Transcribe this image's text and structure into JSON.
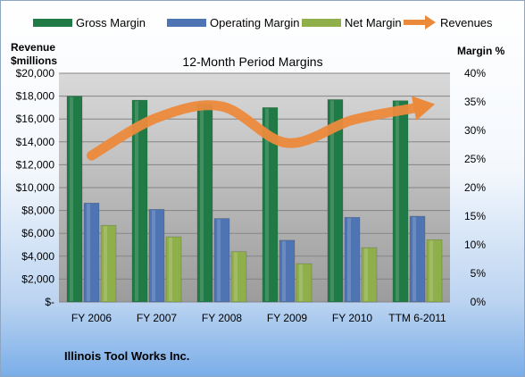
{
  "chart_data": {
    "type": "bar",
    "title": "12-Month Period Margins",
    "left_axis_title_1": "Revenue",
    "left_axis_title_2": "$millions",
    "right_axis_title": "Margin %",
    "company": "Illinois Tool Works Inc.",
    "categories": [
      "FY 2006",
      "FY 2007",
      "FY 2008",
      "FY 2009",
      "FY 2010",
      "TTM 6-2011"
    ],
    "y_left": {
      "min": 0,
      "max": 20000,
      "step": 2000,
      "ticks": [
        "$-",
        "$2,000",
        "$4,000",
        "$6,000",
        "$8,000",
        "$10,000",
        "$12,000",
        "$14,000",
        "$16,000",
        "$18,000",
        "$20,000"
      ]
    },
    "y_right": {
      "min": 0,
      "max": 40,
      "step": 5,
      "ticks": [
        "0%",
        "5%",
        "10%",
        "15%",
        "20%",
        "25%",
        "30%",
        "35%",
        "40%"
      ]
    },
    "series": [
      {
        "name": "Gross Margin",
        "axis": "right",
        "color": "#1f7a45",
        "values": [
          36.0,
          35.3,
          34.6,
          34.0,
          35.4,
          35.2
        ]
      },
      {
        "name": "Operating Margin",
        "axis": "right",
        "color": "#4f74b3",
        "values": [
          17.3,
          16.2,
          14.6,
          10.8,
          14.8,
          15.0
        ]
      },
      {
        "name": "Net Margin",
        "axis": "right",
        "color": "#8faf4a",
        "values": [
          13.4,
          11.4,
          8.8,
          6.7,
          9.5,
          10.9
        ]
      },
      {
        "name": "Revenues",
        "axis": "left",
        "color": "#ec8a3c",
        "type": "line",
        "values": [
          12800,
          16100,
          17100,
          13900,
          15900,
          17000
        ]
      }
    ],
    "grid": true,
    "legend": "top"
  }
}
